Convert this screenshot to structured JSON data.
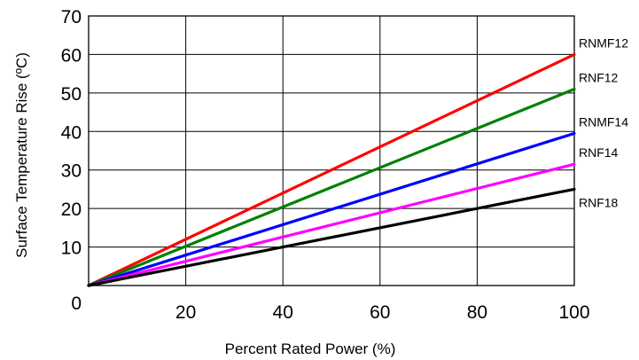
{
  "chart_data": {
    "type": "line",
    "title": "",
    "xlabel": "Percent Rated Power (%)",
    "ylabel": "Surface Temperature Rise (ºC)",
    "xlim": [
      0,
      100
    ],
    "ylim": [
      0,
      70
    ],
    "x_ticks": [
      20,
      40,
      60,
      80,
      100
    ],
    "x_tick_labels": [
      "20",
      "40",
      "60",
      "80",
      "100"
    ],
    "y_ticks": [
      0,
      10,
      20,
      30,
      40,
      50,
      60,
      70
    ],
    "y_tick_labels": [
      "0",
      "10",
      "20",
      "30",
      "40",
      "50",
      "60",
      "70"
    ],
    "grid": true,
    "legend": "none",
    "series": [
      {
        "name": "RNMF12",
        "color": "#ff0000",
        "x": [
          0,
          100
        ],
        "y": [
          0,
          60
        ]
      },
      {
        "name": "RNF12",
        "color": "#008000",
        "x": [
          0,
          100
        ],
        "y": [
          0,
          51
        ]
      },
      {
        "name": "RNMF14",
        "color": "#0000ff",
        "x": [
          0,
          100
        ],
        "y": [
          0,
          39.5
        ]
      },
      {
        "name": "RNF14",
        "color": "#ff00ff",
        "x": [
          0,
          100
        ],
        "y": [
          0,
          31.5
        ]
      },
      {
        "name": "RNF18",
        "color": "#000000",
        "x": [
          0,
          100
        ],
        "y": [
          0,
          25
        ]
      }
    ]
  }
}
